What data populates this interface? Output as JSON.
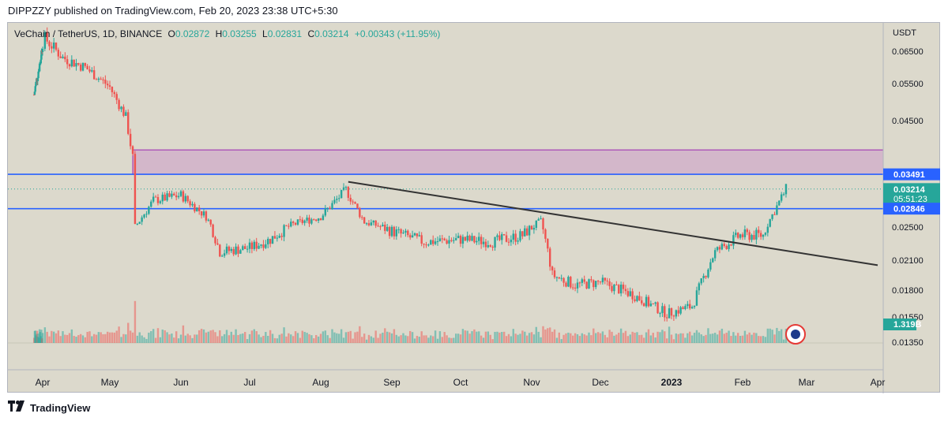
{
  "header": {
    "text": "DIPPZZY published on TradingView.com, Feb 20, 2023 23:38 UTC+5:30"
  },
  "legend": {
    "symbol": "VeChain / TetherUS, 1D, BINANCE",
    "open_label": "O",
    "open": "0.02872",
    "high_label": "H",
    "high": "0.03255",
    "low_label": "L",
    "low": "0.02831",
    "close_label": "C",
    "close": "0.03214",
    "change": "+0.00343 (+11.95%)"
  },
  "footer": {
    "brand": "TradingView",
    "logo": "tradingview-logo"
  },
  "colors": {
    "up": "#26a69a",
    "down": "#ef5350",
    "background": "#dcd9cc",
    "zone": "#c88fc8",
    "hline": "#2962ff",
    "trendline": "#333333"
  },
  "chart_data": {
    "type": "candlestick",
    "symbol": "VeChain / TetherUS",
    "interval": "1D",
    "exchange": "BINANCE",
    "currency_label": "USDT",
    "y_axis_ticks": [
      "0.06500",
      "0.05500",
      "0.04500",
      "0.02500",
      "0.02100",
      "0.01800",
      "0.01550",
      "0.01350"
    ],
    "x_axis_ticks": [
      "Apr",
      "May",
      "Jun",
      "Jul",
      "Aug",
      "Sep",
      "Oct",
      "Nov",
      "Dec",
      "2023",
      "Feb",
      "Mar",
      "Apr"
    ],
    "horizontal_lines": [
      {
        "value": 0.03491,
        "label": "0.03491"
      },
      {
        "value": 0.02846,
        "label": "0.02846"
      }
    ],
    "last_price": {
      "value": 0.03214,
      "label": "0.03214",
      "countdown": "05:51:23"
    },
    "volume_label": "1.319B",
    "zone": {
      "from": 0.03491,
      "to": 0.0395
    },
    "trendline": {
      "start": {
        "date": "2022-08-13",
        "value": 0.0335
      },
      "end": {
        "date": "2023-04-01",
        "value": 0.0205
      }
    },
    "price_path": [
      [
        "2022-03-18",
        0.052
      ],
      [
        "2022-03-28",
        0.062
      ],
      [
        "2022-04-02",
        0.069
      ],
      [
        "2022-04-10",
        0.063
      ],
      [
        "2022-04-20",
        0.06
      ],
      [
        "2022-05-01",
        0.054
      ],
      [
        "2022-05-08",
        0.046
      ],
      [
        "2022-05-11",
        0.038
      ],
      [
        "2022-05-12",
        0.025
      ],
      [
        "2022-05-20",
        0.03
      ],
      [
        "2022-06-01",
        0.031
      ],
      [
        "2022-06-12",
        0.027
      ],
      [
        "2022-06-18",
        0.022
      ],
      [
        "2022-07-01",
        0.0225
      ],
      [
        "2022-07-10",
        0.0235
      ],
      [
        "2022-07-20",
        0.0255
      ],
      [
        "2022-08-01",
        0.027
      ],
      [
        "2022-08-12",
        0.032
      ],
      [
        "2022-08-20",
        0.026
      ],
      [
        "2022-09-01",
        0.0245
      ],
      [
        "2022-09-15",
        0.0232
      ],
      [
        "2022-10-01",
        0.0235
      ],
      [
        "2022-10-15",
        0.0232
      ],
      [
        "2022-10-28",
        0.024
      ],
      [
        "2022-11-05",
        0.026
      ],
      [
        "2022-11-10",
        0.0195
      ],
      [
        "2022-11-20",
        0.0185
      ],
      [
        "2022-12-01",
        0.0188
      ],
      [
        "2022-12-15",
        0.0176
      ],
      [
        "2022-12-30",
        0.0158
      ],
      [
        "2023-01-10",
        0.0165
      ],
      [
        "2023-01-20",
        0.022
      ],
      [
        "2023-01-31",
        0.024
      ],
      [
        "2023-02-10",
        0.024
      ],
      [
        "2023-02-20",
        0.03214
      ]
    ]
  }
}
